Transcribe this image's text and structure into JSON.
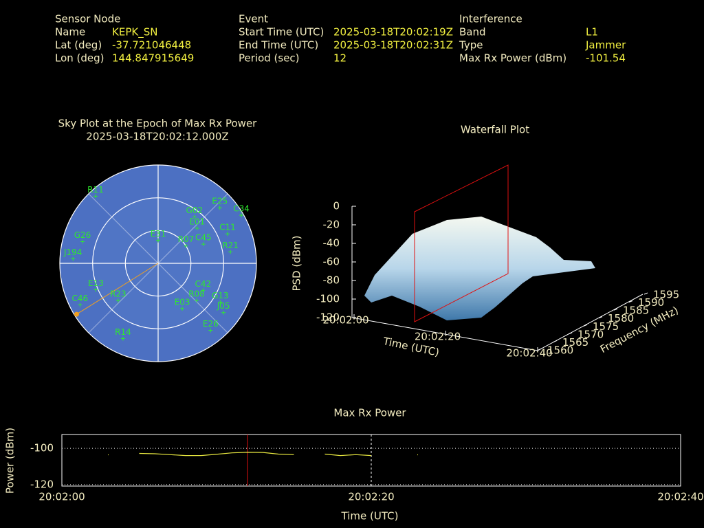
{
  "header": {
    "sensor": {
      "title": "Sensor Node",
      "rows": [
        [
          "Name",
          "KEPK_SN"
        ],
        [
          "Lat (deg)",
          "-37.721046448"
        ],
        [
          "Lon (deg)",
          "144.847915649"
        ]
      ]
    },
    "event": {
      "title": "Event",
      "rows": [
        [
          "Start Time (UTC)",
          "2025-03-18T20:02:19Z"
        ],
        [
          "End Time (UTC)",
          "2025-03-18T20:02:31Z"
        ],
        [
          "Period (sec)",
          "12"
        ]
      ]
    },
    "interference": {
      "title": "Interference",
      "rows": [
        [
          "Band",
          "L1"
        ],
        [
          "Type",
          "Jammer"
        ],
        [
          "Max Rx Power (dBm)",
          "-101.54"
        ]
      ]
    }
  },
  "skyplot": {
    "title": "Sky Plot at the Epoch of Max Rx Power",
    "subtitle": "2025-03-18T20:02:12.000Z",
    "satellites": [
      {
        "name": "C34",
        "azimuth": 60,
        "elevation": 2
      },
      {
        "name": "E25",
        "azimuth": 48,
        "elevation": 14
      },
      {
        "name": "C11",
        "azimuth": 67,
        "elevation": 21
      },
      {
        "name": "R21",
        "azimuth": 81,
        "elevation": 23
      },
      {
        "name": "C45",
        "azimuth": 67,
        "elevation": 45
      },
      {
        "name": "R07",
        "azimuth": 58,
        "elevation": 60
      },
      {
        "name": "E01",
        "azimuth": 48,
        "elevation": 42
      },
      {
        "name": "G02",
        "azimuth": 38,
        "elevation": 36
      },
      {
        "name": "C42",
        "azimuth": 121,
        "elevation": 42
      },
      {
        "name": "R08",
        "azimuth": 134,
        "elevation": 41
      },
      {
        "name": "G13",
        "azimuth": 122,
        "elevation": 23
      },
      {
        "name": "J05",
        "azimuth": 127,
        "elevation": 15
      },
      {
        "name": "E26",
        "azimuth": 142,
        "elevation": 12
      },
      {
        "name": "E03",
        "azimuth": 152,
        "elevation": 43
      },
      {
        "name": "R14",
        "azimuth": 205,
        "elevation": 14
      },
      {
        "name": "R23",
        "azimuth": 227,
        "elevation": 40
      },
      {
        "name": "E13",
        "azimuth": 247,
        "elevation": 28
      },
      {
        "name": "C46",
        "azimuth": 242,
        "elevation": 9
      },
      {
        "name": "J194",
        "azimuth": 273,
        "elevation": 12
      },
      {
        "name": "R11",
        "azimuth": 317,
        "elevation": 6
      },
      {
        "name": "G26",
        "azimuth": 286,
        "elevation": 18
      },
      {
        "name": "E31",
        "azimuth": 0,
        "elevation": 69
      }
    ],
    "jammer": {
      "azimuth": 238,
      "elevation": 2
    }
  },
  "chart_data": [
    {
      "type": "surface3d",
      "title": "Waterfall Plot",
      "xlabel": "Time (UTC)",
      "ylabel": "Frequency (MHz)",
      "zlabel": "PSD (dBm)",
      "xlim": [
        0,
        40
      ],
      "xticks": [
        {
          "value": 0,
          "label": "20:02:00"
        },
        {
          "value": 20,
          "label": "20:02:20"
        },
        {
          "value": 40,
          "label": "20:02:40"
        }
      ],
      "ylim": [
        1560,
        1595
      ],
      "yticks": [
        1560,
        1565,
        1570,
        1575,
        1580,
        1585,
        1590,
        1595
      ],
      "zlim": [
        -120,
        0
      ],
      "zticks": [
        0,
        -20,
        -40,
        -60,
        -80,
        -100,
        -120
      ]
    },
    {
      "type": "line",
      "title": "Max Rx Power",
      "xlabel": "Time (UTC)",
      "ylabel": "Power (dBm)",
      "xlim": [
        0,
        40
      ],
      "xticks": [
        {
          "value": 0,
          "label": "20:02:00"
        },
        {
          "value": 20,
          "label": "20:02:20"
        },
        {
          "value": 40,
          "label": "20:02:40"
        }
      ],
      "ylim": [
        -120.8,
        -92.4
      ],
      "yticks": [
        -100,
        -120
      ],
      "grid": true,
      "marker_x": 12,
      "x": [
        0,
        1,
        2,
        3,
        4,
        5,
        6,
        7,
        8,
        9,
        10,
        11,
        12,
        13,
        14,
        15,
        16,
        17,
        18,
        19,
        20,
        21,
        22,
        23,
        24
      ],
      "series": [
        {
          "name": "Max Rx Power",
          "color": "#e8e840",
          "values": [
            null,
            null,
            null,
            -103.6,
            null,
            -102.8,
            -103,
            -103.5,
            -104,
            -104,
            -103.3,
            -102.5,
            -102.2,
            -102.3,
            -103.2,
            -103.5,
            null,
            -103.2,
            -104,
            -103.5,
            -104,
            null,
            null,
            -103.6,
            null
          ]
        }
      ]
    }
  ]
}
